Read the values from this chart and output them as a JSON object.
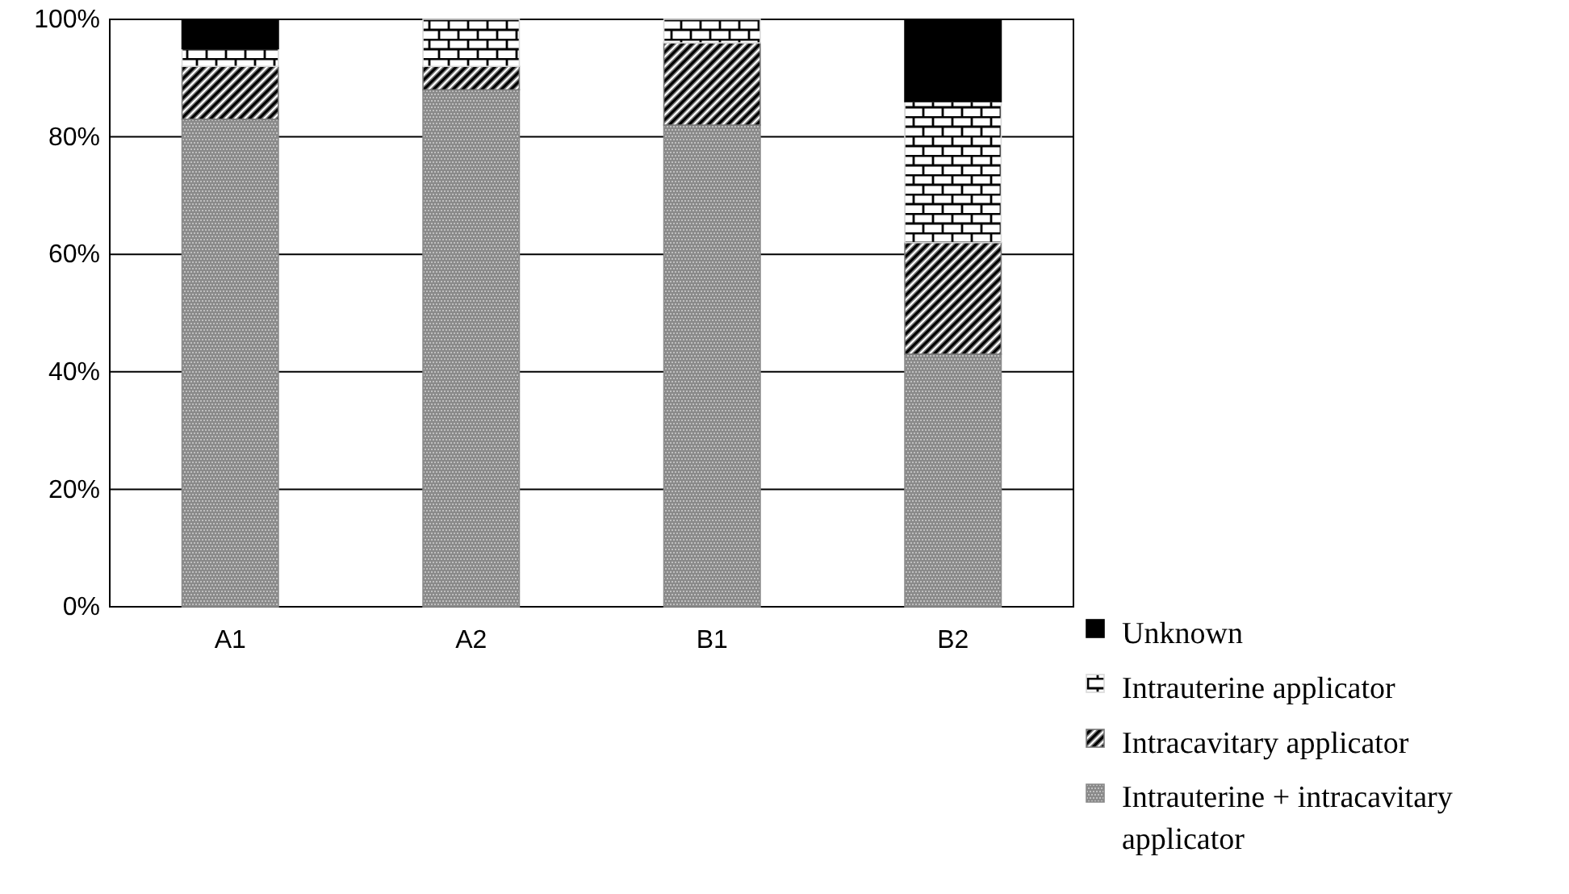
{
  "chart_data": {
    "type": "bar",
    "stacked": true,
    "categories": [
      "A1",
      "A2",
      "B1",
      "B2"
    ],
    "series": [
      {
        "name": "Intrauterine + intracavitary applicator",
        "color": "#8a8a8a",
        "values": [
          83,
          88,
          82,
          43
        ]
      },
      {
        "name": "Intracavitary applicator",
        "color": "#7a7a7a",
        "values": [
          9,
          4,
          14,
          19
        ]
      },
      {
        "name": "Intrauterine applicator",
        "color": "#d9d9d9",
        "values": [
          3,
          8,
          4,
          24
        ]
      },
      {
        "name": "Unknown",
        "color": "#000000",
        "values": [
          5,
          0,
          0,
          14
        ]
      }
    ],
    "ylim": [
      0,
      100
    ],
    "yticks": [
      {
        "value": 0,
        "label": "0%"
      },
      {
        "value": 20,
        "label": "20%"
      },
      {
        "value": 40,
        "label": "40%"
      },
      {
        "value": 60,
        "label": "60%"
      },
      {
        "value": 80,
        "label": "80%"
      },
      {
        "value": 100,
        "label": "100%"
      }
    ],
    "grid": "y",
    "legend": "bottom right"
  }
}
